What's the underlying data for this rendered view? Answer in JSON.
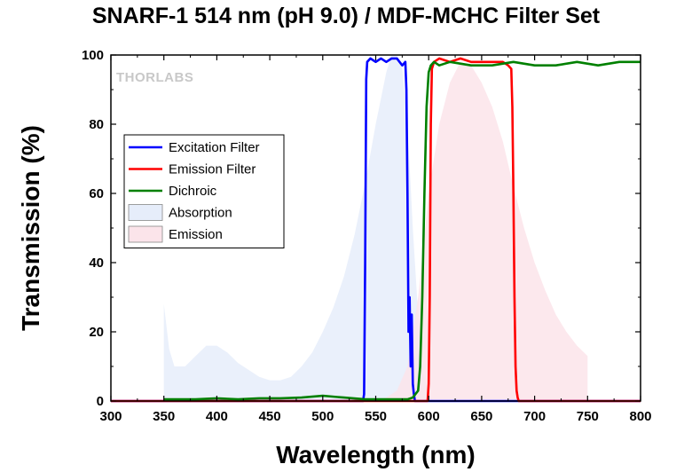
{
  "chart_data": {
    "type": "line",
    "title": "SNARF-1 514 nm (pH 9.0) / MDF-MCHC Filter Set",
    "xlabel": "Wavelength (nm)",
    "ylabel": "Transmission (%)",
    "xlim": [
      300,
      800
    ],
    "ylim": [
      0,
      100
    ],
    "xticks": [
      300,
      350,
      400,
      450,
      500,
      550,
      600,
      650,
      700,
      750,
      800
    ],
    "yticks": [
      0,
      20,
      40,
      60,
      80,
      100
    ],
    "grid": false,
    "legend_position": "upper-left",
    "watermark": "THORLABS",
    "series": [
      {
        "name": "Excitation Filter",
        "style": "line",
        "color": "#0000ff",
        "x": [
          300,
          538,
          539,
          540,
          541,
          542,
          545,
          550,
          555,
          560,
          565,
          570,
          575,
          578,
          579,
          580,
          581,
          582,
          583,
          584,
          585,
          586,
          587,
          590,
          800
        ],
        "y": [
          0,
          0,
          2,
          40,
          93,
          98,
          99,
          98,
          99,
          98,
          99,
          99,
          97,
          98,
          90,
          60,
          20,
          30,
          10,
          25,
          5,
          2,
          0,
          0,
          0
        ]
      },
      {
        "name": "Emission Filter",
        "style": "line",
        "color": "#ff0000",
        "x": [
          300,
          599,
          600,
          601,
          602,
          603,
          605,
          610,
          620,
          630,
          640,
          650,
          660,
          670,
          675,
          678,
          679,
          680,
          681,
          682,
          683,
          684,
          685,
          800
        ],
        "y": [
          0,
          0,
          5,
          30,
          80,
          96,
          98,
          99,
          98,
          99,
          98,
          98,
          98,
          98,
          97,
          96,
          85,
          60,
          30,
          10,
          3,
          1,
          0,
          0
        ]
      },
      {
        "name": "Dichroic",
        "style": "line",
        "color": "#008000",
        "x": [
          350,
          360,
          380,
          400,
          420,
          440,
          460,
          480,
          500,
          520,
          540,
          560,
          570,
          580,
          585,
          590,
          592,
          594,
          596,
          598,
          600,
          602,
          605,
          610,
          620,
          640,
          660,
          680,
          700,
          720,
          740,
          760,
          780,
          800
        ],
        "y": [
          0.5,
          0.5,
          0.5,
          0.8,
          0.5,
          0.8,
          0.8,
          1.0,
          1.5,
          1.0,
          0.5,
          0.5,
          0.5,
          0.5,
          1,
          3,
          10,
          30,
          60,
          85,
          95,
          97,
          98,
          97,
          98,
          97,
          97,
          98,
          97,
          97,
          98,
          97,
          98,
          98
        ]
      },
      {
        "name": "Absorption",
        "style": "area",
        "color": "#e6edfa",
        "x": [
          350,
          355,
          360,
          370,
          380,
          390,
          400,
          410,
          420,
          430,
          440,
          450,
          460,
          470,
          480,
          490,
          500,
          510,
          520,
          530,
          540,
          550,
          560,
          565,
          570,
          575,
          580,
          585,
          590,
          595,
          600,
          605
        ],
        "y": [
          28,
          15,
          10,
          10,
          13,
          16,
          16,
          14,
          11,
          9,
          7,
          6,
          6,
          7,
          10,
          14,
          20,
          27,
          36,
          48,
          63,
          80,
          95,
          100,
          100,
          96,
          80,
          50,
          25,
          8,
          2,
          0
        ]
      },
      {
        "name": "Emission",
        "style": "area",
        "color": "#fbe4ea",
        "x": [
          550,
          560,
          570,
          580,
          590,
          600,
          610,
          620,
          630,
          640,
          650,
          660,
          670,
          680,
          690,
          700,
          710,
          720,
          730,
          740,
          750,
          750
        ],
        "y": [
          0,
          1,
          3,
          10,
          30,
          60,
          80,
          92,
          98,
          97,
          92,
          85,
          75,
          62,
          50,
          40,
          32,
          25,
          20,
          16,
          13,
          0
        ]
      }
    ]
  }
}
